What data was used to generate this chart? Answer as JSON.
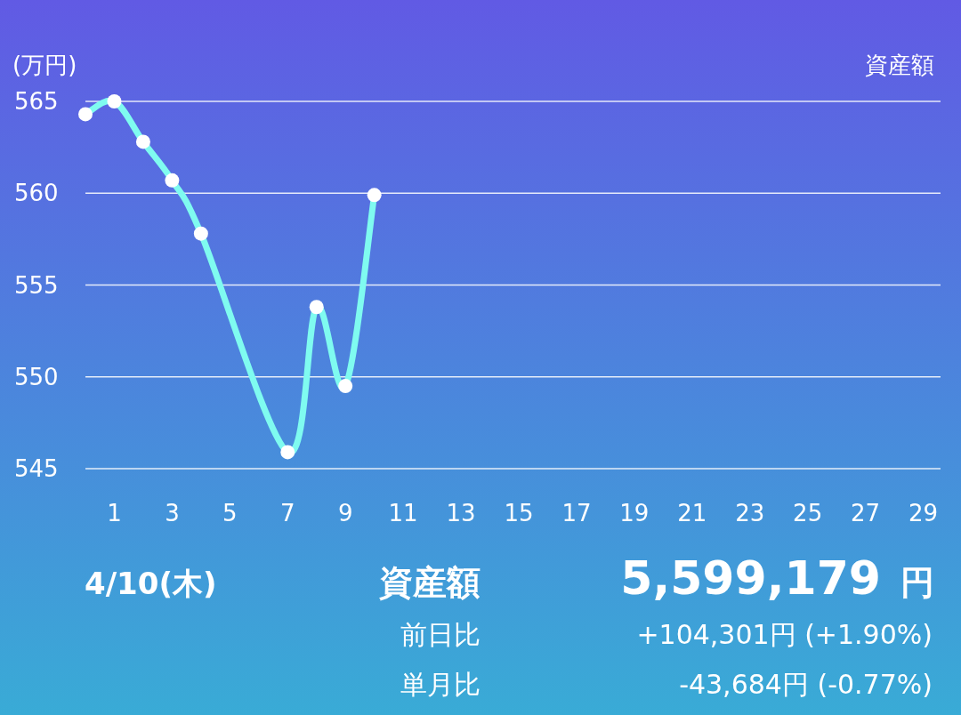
{
  "chart_data": {
    "type": "line",
    "ylabel": "(万円)",
    "legend": "top right",
    "x": [
      0,
      1,
      2,
      3,
      4,
      7,
      8,
      9,
      10
    ],
    "series": [
      {
        "name": "資産額",
        "color": "#7ffbf0",
        "values": [
          564.3,
          565.0,
          562.8,
          560.7,
          557.8,
          545.9,
          553.8,
          549.5,
          559.9
        ]
      },
      {
        "type": "scatter",
        "color": "#ffffff",
        "marker": "circle",
        "values": [
          564.3,
          565.0,
          562.8,
          560.7,
          557.8,
          545.9,
          553.8,
          549.5,
          559.9
        ]
      }
    ],
    "xlim": [
      0,
      29.6
    ],
    "xticks": [
      1,
      3,
      5,
      7,
      9,
      11,
      13,
      15,
      17,
      19,
      21,
      23,
      25,
      27,
      29
    ],
    "ylim": [
      545,
      565
    ],
    "yticks": [
      545,
      550,
      555,
      560,
      565
    ],
    "grid": "y",
    "line_style": "solid",
    "annotations": [
      "4/10(木)",
      "資産額",
      "5,599,179",
      "円",
      "前日比",
      "+104,301円 (+1.90%)",
      "単月比",
      "-43,684円 (-0.77%)"
    ]
  }
}
